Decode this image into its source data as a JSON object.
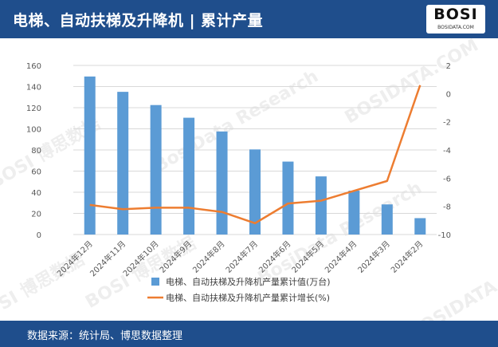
{
  "header": {
    "title": "电梯、自动扶梯及升降机 | 累计产量",
    "logo_text": "BOSI",
    "logo_sub": "BOSIDATA.COM"
  },
  "footer": {
    "source": "数据来源：统计局、博思数据整理"
  },
  "watermark": [
    "BOSI 博思数据",
    "BosiData Research",
    "BOSIDATA.COM"
  ],
  "colors": {
    "header_bg": "#1f4e8c",
    "bar": "#5b9bd5",
    "line": "#ed7d31"
  },
  "chart_data": {
    "type": "bar",
    "categories": [
      "2024年12月",
      "2024年11月",
      "2024年10月",
      "2024年9月",
      "2024年8月",
      "2024年7月",
      "2024年6月",
      "2024年5月",
      "2024年4月",
      "2024年3月",
      "2024年2月"
    ],
    "series": [
      {
        "name": "电梯、自动扶梯及升降机产量累计值(万台)",
        "type": "bar",
        "axis": "left",
        "values": [
          149.5,
          135,
          122.5,
          110.5,
          97.5,
          80.5,
          69,
          55,
          41.5,
          28.5,
          15.5
        ]
      },
      {
        "name": "电梯、自动扶梯及升降机产量累计增长(%)",
        "type": "line",
        "axis": "right",
        "values": [
          -7.9,
          -8.2,
          -8.1,
          -8.1,
          -8.4,
          -9.2,
          -7.8,
          -7.6,
          -6.9,
          -6.2,
          0.6
        ]
      }
    ],
    "left_axis": {
      "min": 0,
      "max": 160,
      "step": 20
    },
    "right_axis": {
      "min": -10,
      "max": 2,
      "step": 2
    },
    "legend": "bottom"
  }
}
